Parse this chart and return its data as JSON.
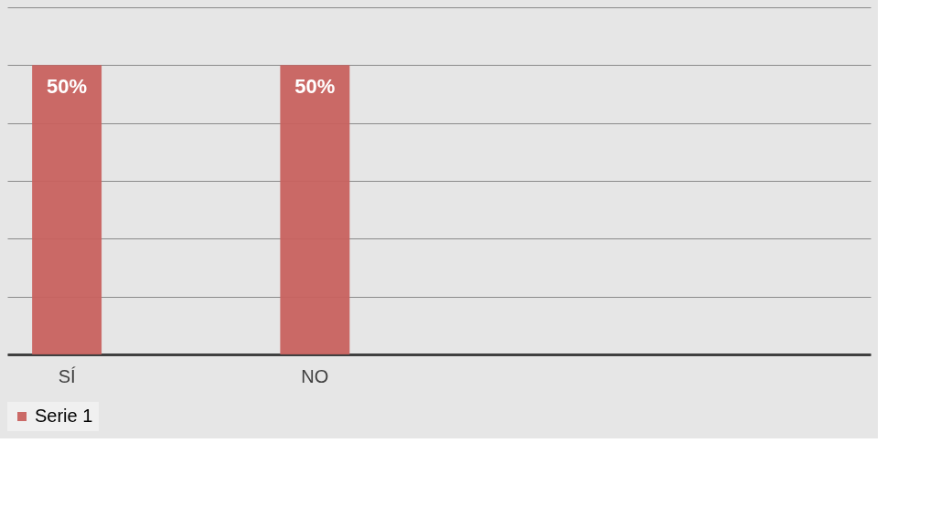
{
  "chart_data": {
    "type": "bar",
    "categories": [
      "SÍ",
      "NO",
      null,
      null
    ],
    "series": [
      {
        "name": "Serie 1",
        "color": "#c8625f",
        "values": [
          50,
          50,
          null,
          null
        ],
        "value_labels": [
          "50%",
          "50%",
          null,
          null
        ]
      }
    ],
    "ylim": [
      0,
      60
    ],
    "yticks": [
      {
        "value": 0,
        "label": null
      },
      {
        "value": 10,
        "label": null
      },
      {
        "value": 20,
        "label": null
      },
      {
        "value": 30,
        "label": null
      },
      {
        "value": 40,
        "label": null
      },
      {
        "value": 50,
        "label": null
      },
      {
        "value": 60,
        "label": null
      }
    ],
    "tick_labels": "x",
    "grid": "y",
    "legend": "bottom"
  }
}
